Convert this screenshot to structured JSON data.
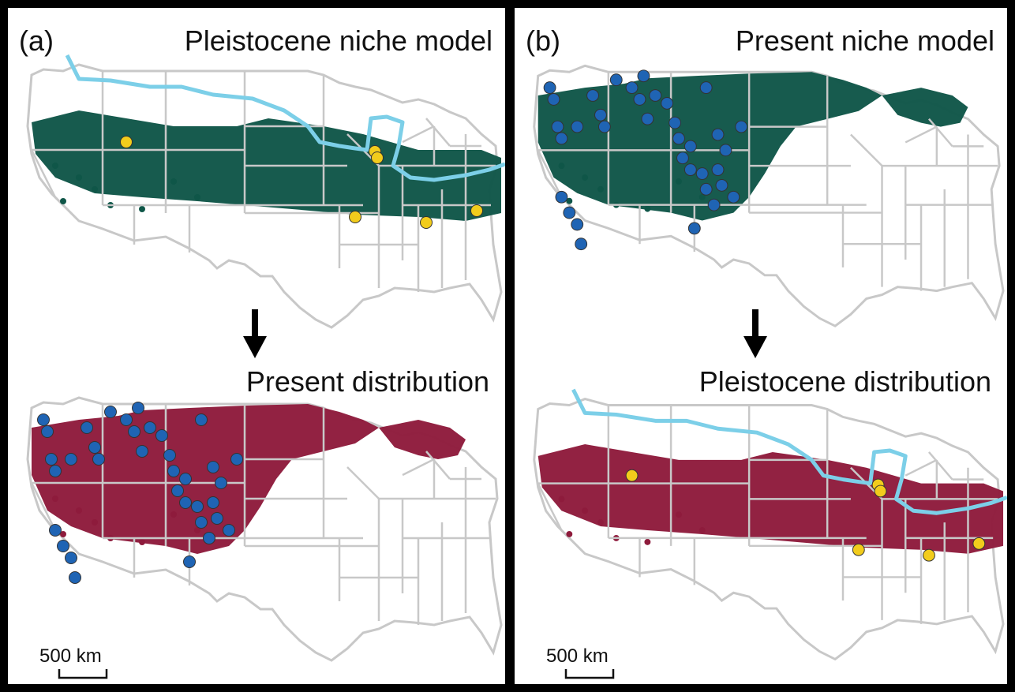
{
  "panels": [
    {
      "id": "a",
      "letter": "(a)",
      "top_title": "Pleistocene niche model",
      "bottom_title": "Present distribution",
      "scale_label": "500 km",
      "top_map": {
        "fill_color": "#0f5648",
        "points_color": "#f2cc1c",
        "shows_ice_margin": true
      },
      "bottom_map": {
        "fill_color": "#8e1b3c",
        "points_color": "#1f64b4",
        "shows_ice_margin": false
      }
    },
    {
      "id": "b",
      "letter": "(b)",
      "top_title": "Present niche model",
      "bottom_title": "Pleistocene distribution",
      "scale_label": "500 km",
      "top_map": {
        "fill_color": "#0f5648",
        "points_color": "#1f64b4",
        "shows_ice_margin": false
      },
      "bottom_map": {
        "fill_color": "#8e1b3c",
        "points_color": "#f2cc1c",
        "shows_ice_margin": true
      }
    }
  ],
  "colors": {
    "border": "#c8c8c8",
    "ice_margin": "#7ccfe8",
    "niche_green": "#0f5648",
    "niche_red": "#8e1b3c",
    "point_yellow": "#f2cc1c",
    "point_blue": "#1f64b4"
  },
  "icons": {
    "transition": "down-arrow-icon",
    "scale": "scale-bar-icon"
  }
}
